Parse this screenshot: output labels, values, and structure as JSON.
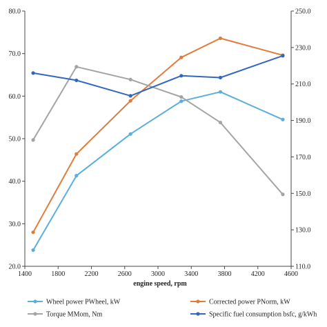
{
  "chart_data": {
    "type": "line",
    "xlabel": "engine speed, rpm",
    "xlim": [
      1400,
      4600
    ],
    "x_ticks": [
      1400,
      1800,
      2200,
      2600,
      3000,
      3400,
      3800,
      4200,
      4600
    ],
    "ylim_left": [
      20,
      80
    ],
    "y_left_ticks": [
      "20.0",
      "30.0",
      "40.0",
      "50.0",
      "60.0",
      "70.0",
      "80.0"
    ],
    "ylim_right": [
      110,
      250
    ],
    "y_right_ticks": [
      "110.0",
      "130.0",
      "150.0",
      "170.0",
      "190.0",
      "210.0",
      "230.0",
      "250.0"
    ],
    "grid": false,
    "legend_position": "bottom",
    "series": [
      {
        "name": "Wheel power  PWheel, kW",
        "color": "#5aaedc",
        "axis": "left",
        "x": [
          1500,
          2020,
          2670,
          3280,
          3750,
          4500
        ],
        "values": [
          23.8,
          41.3,
          51.1,
          58.8,
          61.0,
          54.5
        ]
      },
      {
        "name": "Corrected power  PNorm, kW",
        "color": "#e07b39",
        "axis": "left",
        "x": [
          1500,
          2020,
          2670,
          3280,
          3750,
          4500
        ],
        "values": [
          28.0,
          46.4,
          58.9,
          69.1,
          73.6,
          69.6
        ]
      },
      {
        "name": "Torque MMom, Nm",
        "color": "#a3a3a3",
        "axis": "left",
        "x": [
          1500,
          2020,
          2670,
          3280,
          3750,
          4500
        ],
        "values": [
          49.7,
          66.9,
          63.9,
          59.8,
          53.8,
          36.9
        ]
      },
      {
        "name": "Specific fuel consumption bsfc, g/kWh",
        "color": "#3366c0",
        "axis": "right",
        "x": [
          1500,
          2020,
          2670,
          3280,
          3750,
          4500
        ],
        "values": [
          216.0,
          212.0,
          203.5,
          214.5,
          213.5,
          225.5
        ]
      }
    ]
  }
}
